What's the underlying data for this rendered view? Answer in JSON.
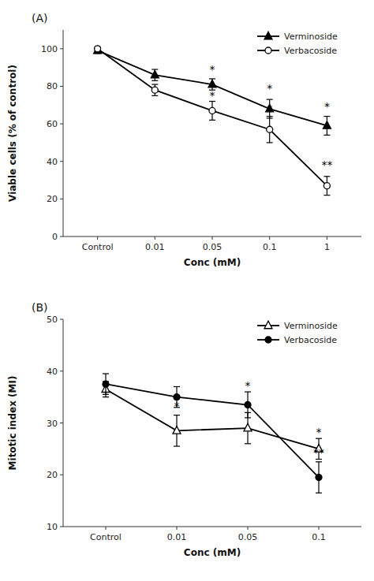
{
  "chart_data": [
    {
      "type": "line",
      "title": "(A)",
      "x_label": "Conc (mM)",
      "y_label": "Viable cells (% of control)",
      "categories": [
        "Control",
        "0.01",
        "0.05",
        "0.1",
        "1"
      ],
      "series": [
        {
          "name": "Verminoside",
          "color": "#000000",
          "marker": "triangle",
          "line_style": "solid",
          "values": [
            99,
            86,
            81,
            68,
            59
          ],
          "errors": [
            1.5,
            3,
            3,
            5,
            5
          ]
        },
        {
          "name": "Verbacoside",
          "color": "#000000",
          "marker": "open-circle",
          "line_style": "solid",
          "values": [
            100,
            78,
            67,
            57,
            27
          ],
          "errors": [
            1.0,
            3,
            5,
            7,
            5
          ]
        }
      ],
      "ylim": [
        0,
        110
      ],
      "yticks": [
        0,
        20,
        40,
        60,
        80,
        100
      ],
      "annotations": [
        {
          "x": "0.05",
          "y": 87,
          "text": "*"
        },
        {
          "x": "0.05",
          "y": 73,
          "text": "*"
        },
        {
          "x": "0.1",
          "y": 77,
          "text": "*"
        },
        {
          "x": "0.1",
          "y": 66,
          "text": "*"
        },
        {
          "x": "1",
          "y": 67,
          "text": "*"
        },
        {
          "x": "1",
          "y": 36,
          "text": "**"
        }
      ],
      "legend": "upper right",
      "grid": false
    },
    {
      "type": "line",
      "title": "(B)",
      "x_label": "Conc (mM)",
      "y_label": "Mitotic index (MI)",
      "categories": [
        "Control",
        "0.01",
        "0.05",
        "0.1"
      ],
      "series": [
        {
          "name": "Verminoside",
          "color": "#000000",
          "marker": "open-triangle",
          "line_style": "solid",
          "values": [
            36.5,
            28.5,
            29,
            25
          ],
          "errors": [
            1.5,
            3,
            3,
            2
          ]
        },
        {
          "name": "Verbacoside",
          "color": "#000000",
          "marker": "circle",
          "line_style": "solid",
          "values": [
            37.5,
            35,
            33.5,
            19.5
          ],
          "errors": [
            2,
            2,
            2.5,
            3
          ]
        }
      ],
      "ylim": [
        10,
        50
      ],
      "yticks": [
        10,
        20,
        30,
        40,
        50
      ],
      "annotations": [
        {
          "x": "0.01",
          "y": 32.5,
          "text": "*"
        },
        {
          "x": "0.05",
          "y": 32.5,
          "text": "*"
        },
        {
          "x": "0.05",
          "y": 36.5,
          "text": "*"
        },
        {
          "x": "0.1",
          "y": 27.5,
          "text": "*"
        },
        {
          "x": "0.1",
          "y": 23.5,
          "text": "**"
        }
      ],
      "legend": "upper right",
      "grid": false
    }
  ]
}
